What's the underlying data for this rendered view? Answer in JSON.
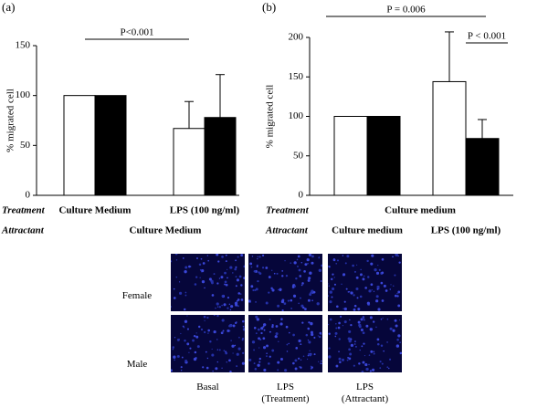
{
  "chart_data": [
    {
      "type": "bar",
      "panel_label": "(a)",
      "ylabel": "% migrated cell",
      "ylim": [
        0,
        150
      ],
      "yticks": [
        0,
        50,
        100,
        150
      ],
      "row_labels": [
        "Treatment",
        "Attractant"
      ],
      "treatment": [
        "Culture Medium",
        "LPS (100 ng/ml)"
      ],
      "attractant": "Culture Medium",
      "series": [
        {
          "color": "#ffffff",
          "values": [
            100,
            67
          ],
          "errors": [
            null,
            27
          ]
        },
        {
          "color": "#000000",
          "values": [
            100,
            78
          ],
          "errors": [
            null,
            43
          ]
        }
      ],
      "annotations": [
        "P<0.001"
      ]
    },
    {
      "type": "bar",
      "panel_label": "(b)",
      "ylabel": "% migrated cell",
      "ylim": [
        0,
        200
      ],
      "yticks": [
        0,
        50,
        100,
        150,
        200
      ],
      "row_labels": [
        "Treatment",
        "Attractant"
      ],
      "treatment": "Culture medium",
      "attractant": [
        "Culture medium",
        "LPS (100 ng/ml)"
      ],
      "series": [
        {
          "color": "#ffffff",
          "values": [
            100,
            144
          ],
          "errors": [
            null,
            63
          ]
        },
        {
          "color": "#000000",
          "values": [
            100,
            72
          ],
          "errors": [
            null,
            24
          ]
        }
      ],
      "annotations": [
        "P = 0.006",
        "P < 0.001"
      ]
    }
  ],
  "image_panel": {
    "rows": [
      "Female",
      "Male"
    ],
    "columns": [
      "Basal",
      "LPS (Treatment)",
      "LPS (Attractant)"
    ]
  }
}
